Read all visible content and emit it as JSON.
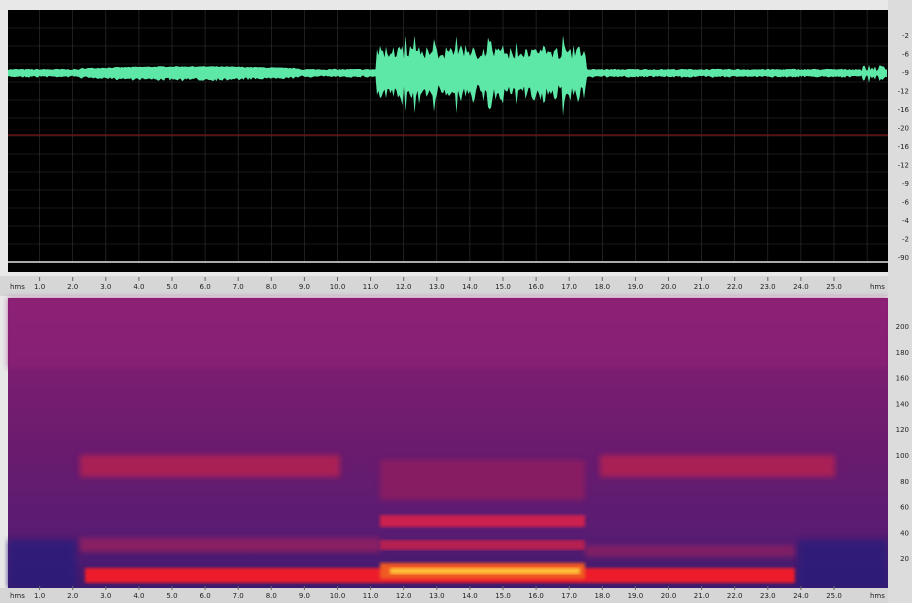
{
  "waveform_axis": {
    "unit_left": "hms",
    "ticks": [
      "1.0",
      "2.0",
      "3.0",
      "4.0",
      "5.0",
      "6.0",
      "7.0",
      "8.0",
      "9.0",
      "10.0",
      "11.0",
      "12.0",
      "13.0",
      "14.0",
      "15.0",
      "16.0",
      "17.0",
      "18.0",
      "19.0",
      "20.0",
      "21.0",
      "22.0",
      "23.0",
      "24.0",
      "25.0"
    ],
    "unit_right": "hms"
  },
  "spectrogram_axis": {
    "unit_left": "hms",
    "ticks": [
      "1.0",
      "2.0",
      "3.0",
      "4.0",
      "5.0",
      "6.0",
      "7.0",
      "8.0",
      "9.0",
      "10.0",
      "11.0",
      "12.0",
      "13.0",
      "14.0",
      "15.0",
      "16.0",
      "17.0",
      "18.0",
      "19.0",
      "20.0",
      "21.0",
      "22.0",
      "23.0",
      "24.0",
      "25.0"
    ],
    "unit_right": "hms"
  },
  "waveform_scale": [
    "-2",
    "-6",
    "-9",
    "-12",
    "-16",
    "-20",
    "-16",
    "-12",
    "-9",
    "-6",
    "-4",
    "-2",
    "-90"
  ],
  "spectrogram_scale": [
    "200",
    "180",
    "160",
    "140",
    "120",
    "100",
    "80",
    "60",
    "40",
    "20"
  ]
}
